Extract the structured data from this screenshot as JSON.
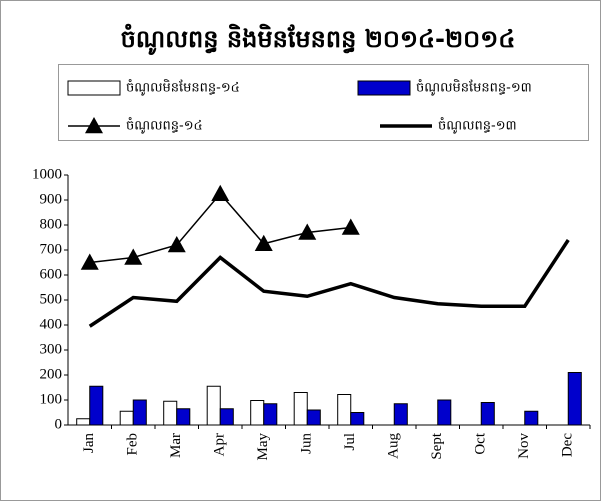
{
  "chart_data": {
    "type": "bar-line",
    "title": "ចំណូលពន្ធ និងមិនមែនពន្ធ ២០១៤-២០១៤",
    "categories": [
      "Jan",
      "Feb",
      "Mar",
      "Apr",
      "May",
      "Jun",
      "Jul",
      "Aug",
      "Sept",
      "Oct",
      "Nov",
      "Dec"
    ],
    "series": [
      {
        "name": "ចំណូលមិនមែនពន្ធ-១៤",
        "type": "bar",
        "color": "#ffffff",
        "values": [
          25,
          55,
          95,
          155,
          98,
          130,
          122,
          null,
          null,
          null,
          null,
          null
        ]
      },
      {
        "name": "ចំណូលមិនមែនពន្ធ-១៣",
        "type": "bar",
        "color": "#0000cc",
        "values": [
          155,
          100,
          65,
          65,
          85,
          60,
          50,
          85,
          100,
          90,
          55,
          210
        ]
      },
      {
        "name": "ចំណូលពន្ធ-១៤",
        "type": "line",
        "color": "#000000",
        "marker": "triangle",
        "line_width": 1.5,
        "values": [
          650,
          670,
          720,
          925,
          725,
          770,
          790,
          null,
          null,
          null,
          null,
          null
        ]
      },
      {
        "name": "ចំណូលពន្ធ-១៣",
        "type": "line",
        "color": "#000000",
        "line_width": 3.5,
        "values": [
          395,
          510,
          495,
          670,
          535,
          515,
          565,
          510,
          485,
          475,
          475,
          740
        ]
      }
    ],
    "ylim": [
      0,
      1000
    ],
    "yticks": [
      0,
      100,
      200,
      300,
      400,
      500,
      600,
      700,
      800,
      900,
      1000
    ],
    "grid": false
  }
}
